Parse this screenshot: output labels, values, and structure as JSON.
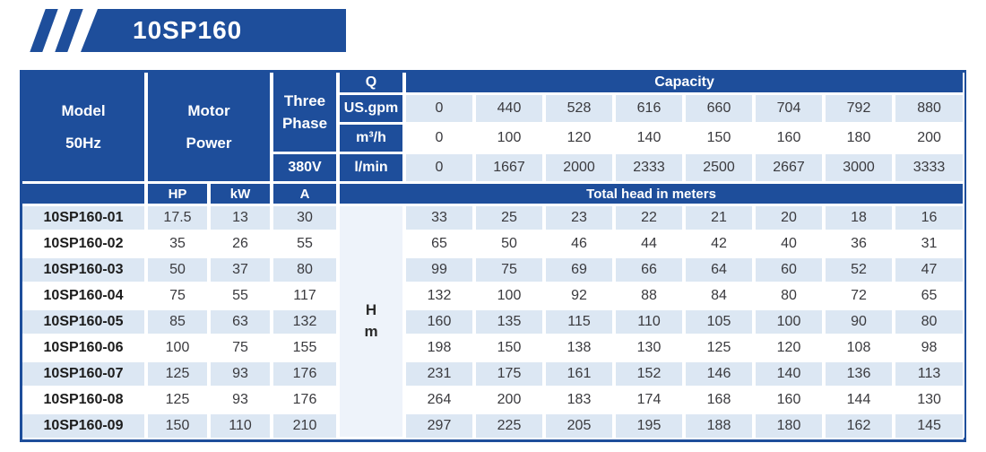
{
  "banner": {
    "title": "10SP160"
  },
  "colors": {
    "brand_blue": "#1e4e9b",
    "row_light_blue": "#dce7f3",
    "row_white": "#ffffff",
    "hm_cell": "#eef3fa",
    "text_dark": "#3a3a3e"
  },
  "table": {
    "header": {
      "model_line1": "Model",
      "model_line2": "50Hz",
      "motor_line1": "Motor",
      "motor_line2": "Power",
      "phase_line1": "Three",
      "phase_line2": "Phase",
      "voltage": "380V",
      "q": "Q",
      "capacity": "Capacity",
      "units": [
        "US.gpm",
        "m³/h",
        "l/min"
      ],
      "hp": "HP",
      "kw": "kW",
      "amp": "A",
      "total_head": "Total head in meters",
      "head_line1": "H",
      "head_line2": "m"
    },
    "capacity": {
      "us_gpm": [
        "0",
        "440",
        "528",
        "616",
        "660",
        "704",
        "792",
        "880"
      ],
      "m3_h": [
        "0",
        "100",
        "120",
        "140",
        "150",
        "160",
        "180",
        "200"
      ],
      "l_min": [
        "0",
        "1667",
        "2000",
        "2333",
        "2500",
        "2667",
        "3000",
        "3333"
      ]
    },
    "rows": [
      {
        "model": "10SP160-01",
        "hp": "17.5",
        "kw": "13",
        "a": "30",
        "head": [
          "33",
          "25",
          "23",
          "22",
          "21",
          "20",
          "18",
          "16"
        ]
      },
      {
        "model": "10SP160-02",
        "hp": "35",
        "kw": "26",
        "a": "55",
        "head": [
          "65",
          "50",
          "46",
          "44",
          "42",
          "40",
          "36",
          "31"
        ]
      },
      {
        "model": "10SP160-03",
        "hp": "50",
        "kw": "37",
        "a": "80",
        "head": [
          "99",
          "75",
          "69",
          "66",
          "64",
          "60",
          "52",
          "47"
        ]
      },
      {
        "model": "10SP160-04",
        "hp": "75",
        "kw": "55",
        "a": "117",
        "head": [
          "132",
          "100",
          "92",
          "88",
          "84",
          "80",
          "72",
          "65"
        ]
      },
      {
        "model": "10SP160-05",
        "hp": "85",
        "kw": "63",
        "a": "132",
        "head": [
          "160",
          "135",
          "115",
          "110",
          "105",
          "100",
          "90",
          "80"
        ]
      },
      {
        "model": "10SP160-06",
        "hp": "100",
        "kw": "75",
        "a": "155",
        "head": [
          "198",
          "150",
          "138",
          "130",
          "125",
          "120",
          "108",
          "98"
        ]
      },
      {
        "model": "10SP160-07",
        "hp": "125",
        "kw": "93",
        "a": "176",
        "head": [
          "231",
          "175",
          "161",
          "152",
          "146",
          "140",
          "136",
          "113"
        ]
      },
      {
        "model": "10SP160-08",
        "hp": "125",
        "kw": "93",
        "a": "176",
        "head": [
          "264",
          "200",
          "183",
          "174",
          "168",
          "160",
          "144",
          "130"
        ]
      },
      {
        "model": "10SP160-09",
        "hp": "150",
        "kw": "110",
        "a": "210",
        "head": [
          "297",
          "225",
          "205",
          "195",
          "188",
          "180",
          "162",
          "145"
        ]
      }
    ]
  }
}
